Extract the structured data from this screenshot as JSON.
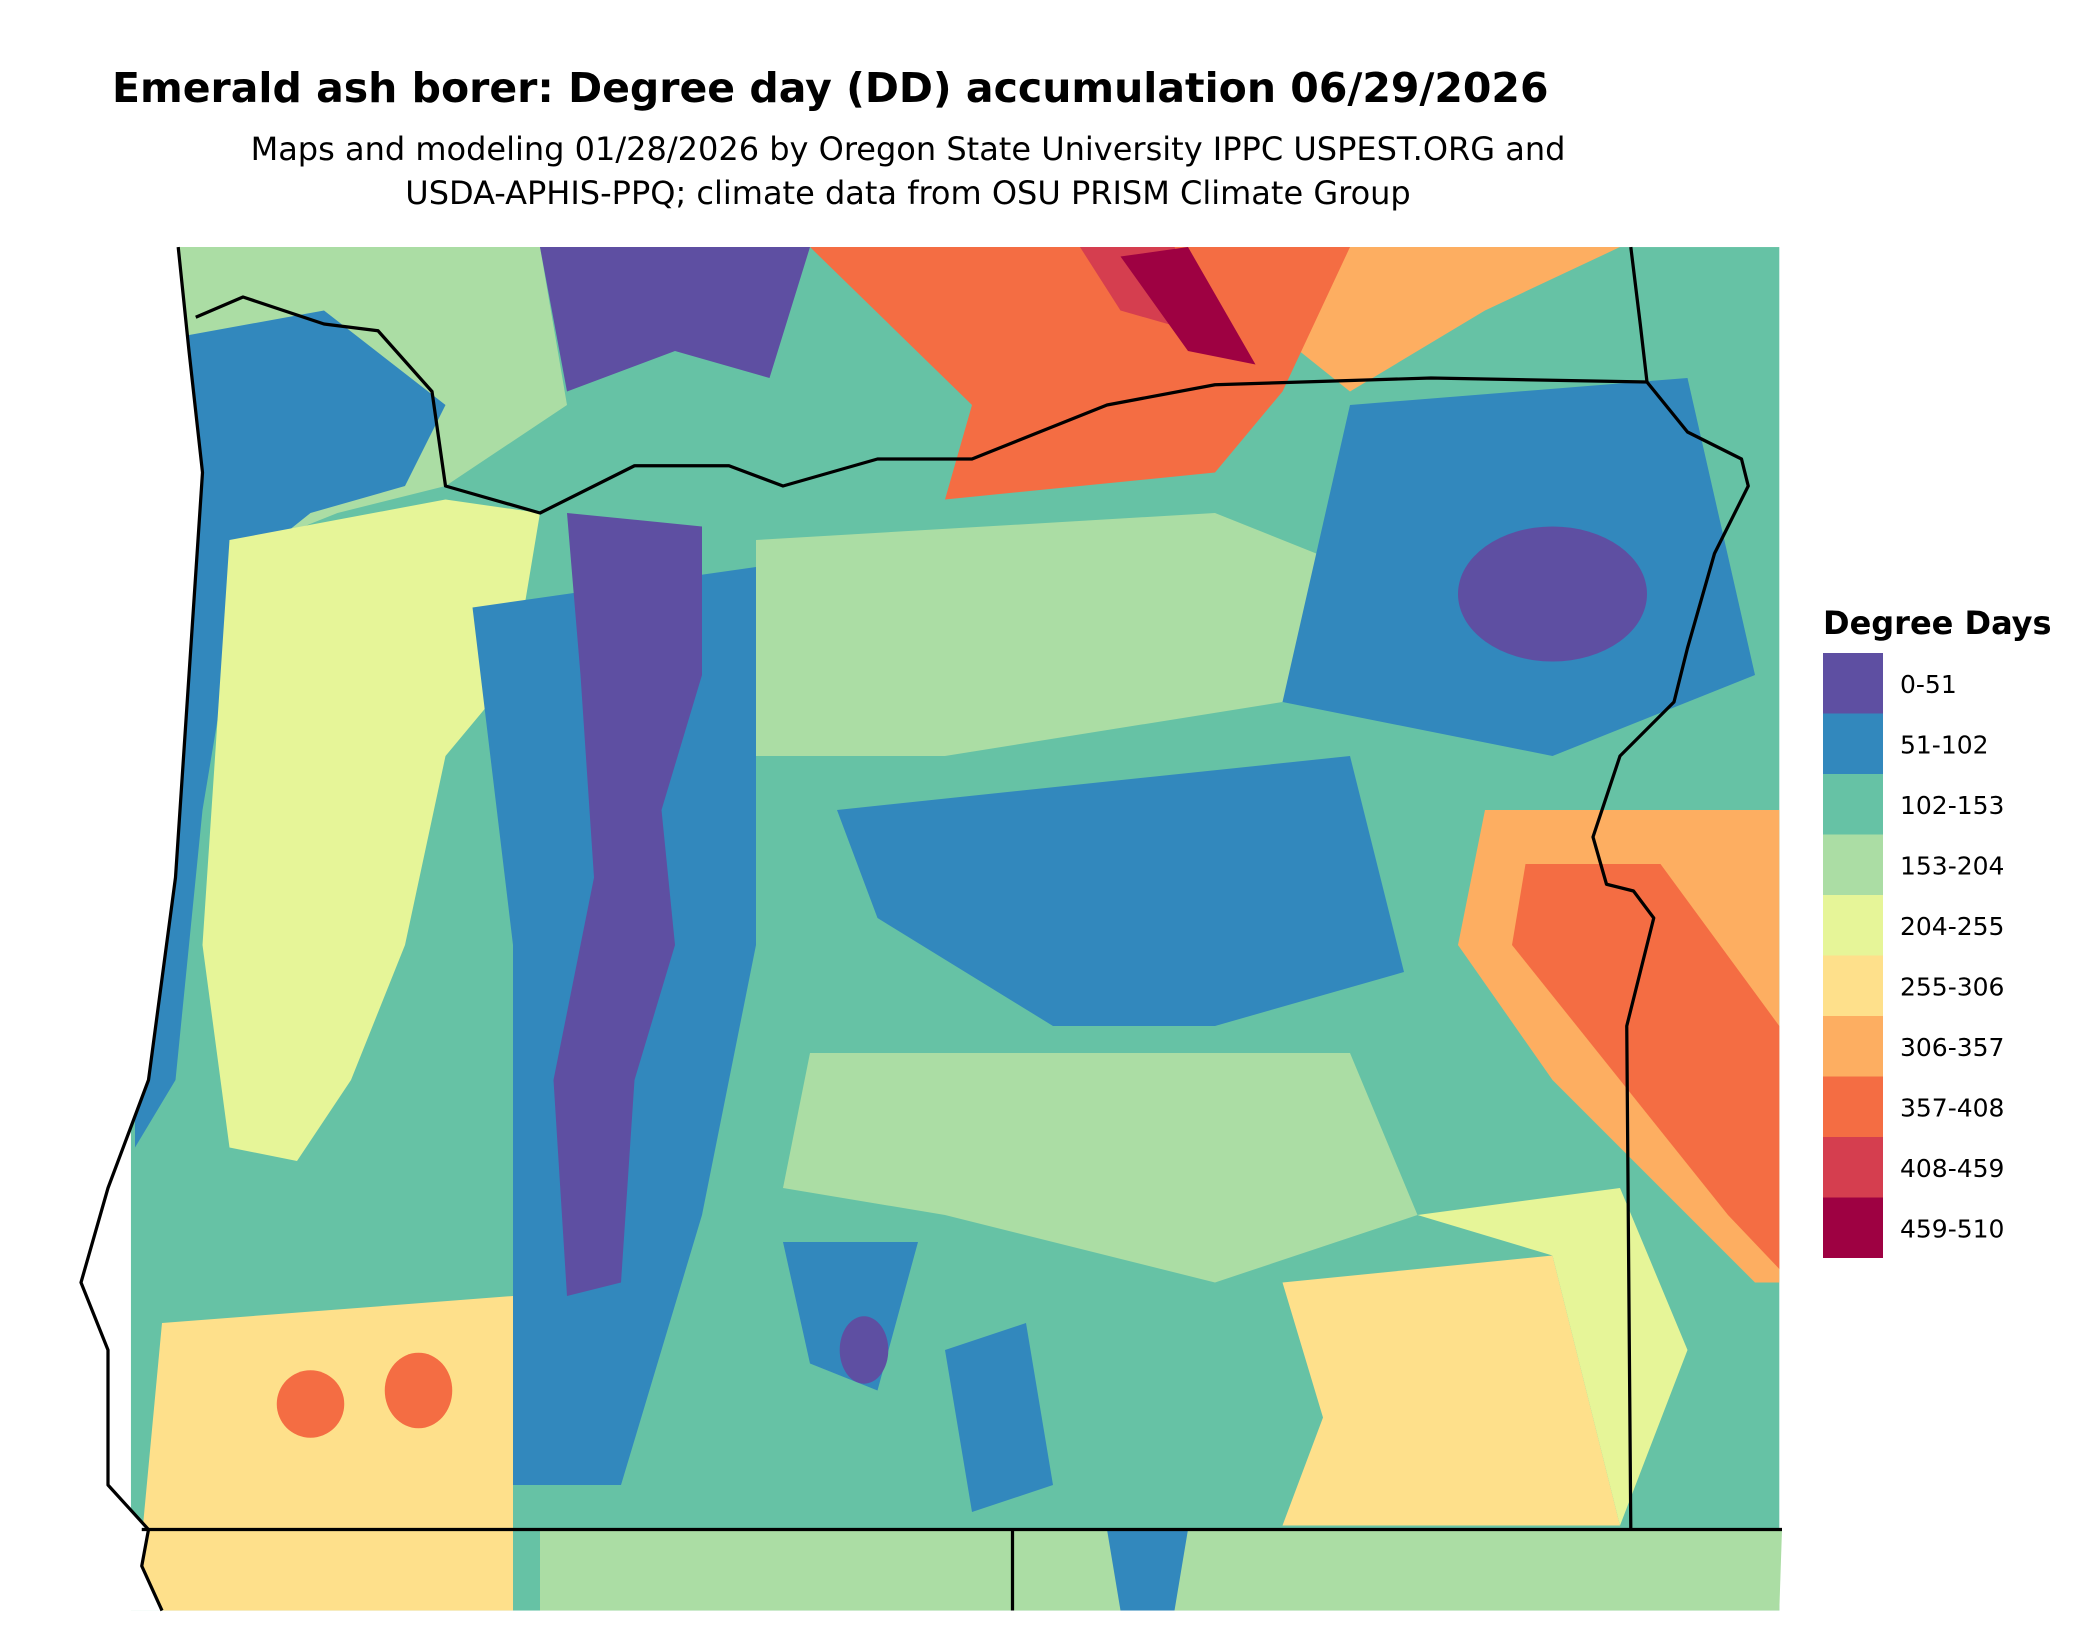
{
  "title": "Emerald ash borer: Degree day (DD) accumulation 06/29/2026",
  "subtitle": [
    "Maps and modeling 01/28/2026 by Oregon State University IPPC USPEST.ORG and",
    "USDA-APHIS-PPQ; climate data from OSU PRISM Climate Group"
  ],
  "legend": {
    "title": "Degree Days",
    "items": [
      {
        "label": "0-51",
        "color": "#5e4fa2"
      },
      {
        "label": "51-102",
        "color": "#3288bd"
      },
      {
        "label": "102-153",
        "color": "#66c2a5"
      },
      {
        "label": "153-204",
        "color": "#abdda4"
      },
      {
        "label": "204-255",
        "color": "#e6f598"
      },
      {
        "label": "255-306",
        "color": "#fee08b"
      },
      {
        "label": "306-357",
        "color": "#fdae61"
      },
      {
        "label": "357-408",
        "color": "#f46d43"
      },
      {
        "label": "408-459",
        "color": "#d53e4f"
      },
      {
        "label": "459-510",
        "color": "#9e0142"
      }
    ]
  }
}
